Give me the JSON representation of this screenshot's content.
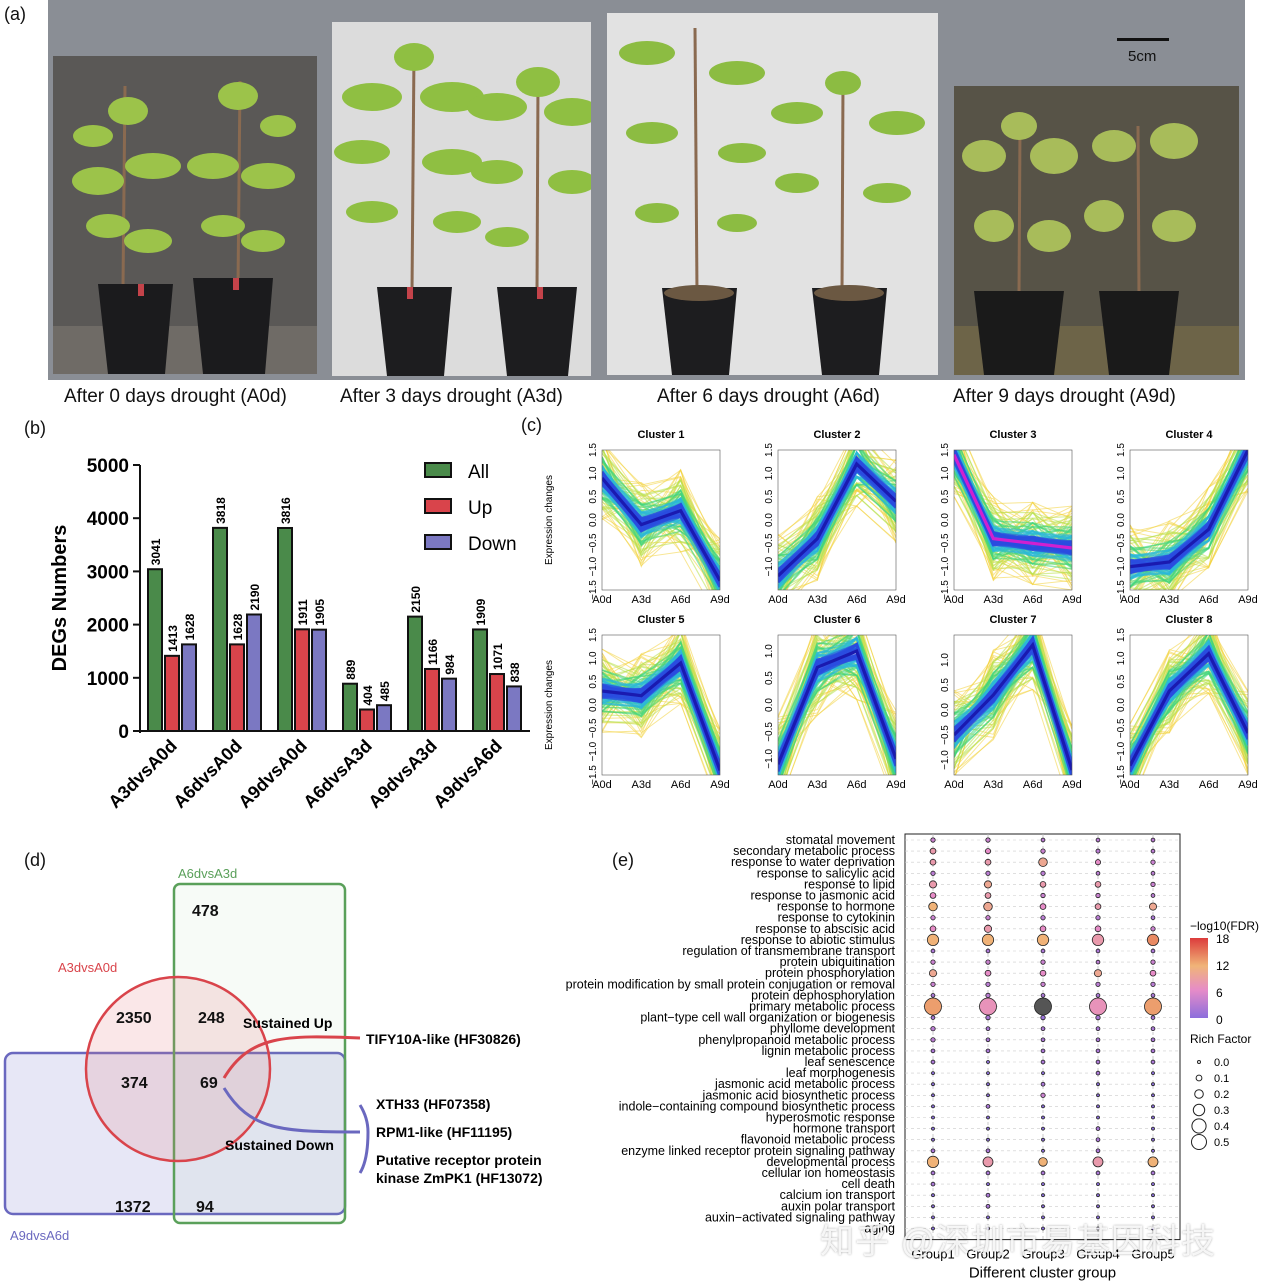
{
  "panels": {
    "a": "(a)",
    "b": "(b)",
    "c": "(c)",
    "d": "(d)",
    "e": "(e)"
  },
  "photos": {
    "scale_label": "5cm",
    "captions": [
      "After 0 days drought (A0d)",
      "After 3 days drought (A3d)",
      "After 6 days drought (A6d)",
      "After 9 days drought (A9d)"
    ]
  },
  "chart_data": [
    {
      "type": "bar",
      "ylabel": "DEGs Numbers",
      "ylim": [
        0,
        5000
      ],
      "yticks": [
        "0",
        "1000",
        "2000",
        "3000",
        "4000",
        "5000"
      ],
      "categories": [
        "A3dvsA0d",
        "A6dvsA0d",
        "A9dvsA0d",
        "A6dvsA3d",
        "A9dvsA3d",
        "A9dvsA6d"
      ],
      "series": [
        {
          "name": "All",
          "color": "#4a8a4a",
          "values": [
            3041,
            3818,
            3816,
            889,
            2150,
            1909
          ]
        },
        {
          "name": "Up",
          "color": "#d9444b",
          "values": [
            1413,
            1628,
            1911,
            404,
            1166,
            1071
          ]
        },
        {
          "name": "Down",
          "color": "#7b78c2",
          "values": [
            1628,
            2190,
            1905,
            485,
            984,
            838
          ]
        }
      ],
      "legend": "top-right"
    },
    {
      "type": "line",
      "ylabel": "Expression changes",
      "x": [
        "A0d",
        "A3d",
        "A6d",
        "A9d"
      ],
      "clusters": [
        {
          "title": "Cluster 1",
          "yticks": [
            "-1.5",
            "-1.0",
            "-0.5",
            "0.0",
            "0.5",
            "1.0",
            "1.5"
          ],
          "ylim": [
            -1.5,
            1.5
          ],
          "center": [
            0.9,
            -0.1,
            0.2,
            -1.3
          ]
        },
        {
          "title": "Cluster 2",
          "yticks": [
            "-1.0",
            "-0.5",
            "0.0",
            "0.5",
            "1.0",
            "1.5"
          ],
          "ylim": [
            -1.5,
            1.5
          ],
          "center": [
            -1.2,
            -0.4,
            1.2,
            0.4
          ]
        },
        {
          "title": "Cluster 3",
          "yticks": [
            "-1.5",
            "-1.0",
            "-0.5",
            "0.0",
            "0.5",
            "1.0",
            "1.5"
          ],
          "ylim": [
            -1.5,
            1.5
          ],
          "center": [
            1.4,
            -0.4,
            -0.5,
            -0.6
          ]
        },
        {
          "title": "Cluster 4",
          "yticks": [
            "-1.5",
            "-1.0",
            "-0.5",
            "0.0",
            "0.5",
            "1.0",
            "1.5"
          ],
          "ylim": [
            -1.5,
            1.5
          ],
          "center": [
            -1.0,
            -0.9,
            -0.2,
            1.5
          ]
        },
        {
          "title": "Cluster 5",
          "yticks": [
            "-1.5",
            "-1.0",
            "-0.5",
            "0.0",
            "0.5",
            "1.0",
            "1.5"
          ],
          "ylim": [
            -1.5,
            1.5
          ],
          "center": [
            0.3,
            0.2,
            0.9,
            -1.4
          ]
        },
        {
          "title": "Cluster 6",
          "yticks": [
            "-1.0",
            "-0.5",
            "0.0",
            "0.5",
            "1.0"
          ],
          "ylim": [
            -1.3,
            1.3
          ],
          "center": [
            -1.1,
            0.7,
            1.0,
            -1.0
          ]
        },
        {
          "title": "Cluster 7",
          "yticks": [
            "-1.0",
            "-0.5",
            "0.0",
            "0.5",
            "1.0"
          ],
          "ylim": [
            -1.3,
            1.5
          ],
          "center": [
            -0.5,
            0.3,
            1.3,
            -1.2
          ]
        },
        {
          "title": "Cluster 8",
          "yticks": [
            "-1.5",
            "-1.0",
            "-0.5",
            "0.0",
            "0.5",
            "1.0",
            "1.5"
          ],
          "ylim": [
            -1.5,
            1.5
          ],
          "center": [
            -1.3,
            0.3,
            1.1,
            -0.6
          ]
        }
      ]
    },
    {
      "type": "scatter",
      "xlabel": "Different cluster group",
      "groups": [
        "Group1",
        "Group2",
        "Group3",
        "Group4",
        "Group5"
      ],
      "terms": [
        "stomatal movement",
        "secondary metabolic process",
        "response to water deprivation",
        "response to salicylic acid",
        "response to lipid",
        "response to jasmonic acid",
        "response to hormone",
        "response to cytokinin",
        "response to abscisic acid",
        "response to abiotic stimulus",
        "regulation of transmembrane transport",
        "protein ubiquitination",
        "protein phosphorylation",
        "protein modification by small protein conjugation or removal",
        "protein dephosphorylation",
        "primary metabolic process",
        "plant−type cell wall organization or biogenesis",
        "phyllome development",
        "phenylpropanoid metabolic process",
        "lignin metabolic process",
        "leaf senescence",
        "leaf morphogenesis",
        "jasmonic acid metabolic process",
        "jasmonic acid biosynthetic process",
        "indole−containing compound biosynthetic process",
        "hyperosmotic response",
        "hormone transport",
        "flavonoid metabolic process",
        "enzyme linked receptor protein signaling pathway",
        "developmental process",
        "cellular ion homeostasis",
        "cell death",
        "calcium ion transport",
        "auxin polar transport",
        "auxin−activated signaling pathway",
        "aging"
      ],
      "rich_factor": [
        [
          0.05,
          0.05,
          0.03,
          0.03,
          0.03
        ],
        [
          0.1,
          0.08,
          0.05,
          0.04,
          0.03
        ],
        [
          0.1,
          0.1,
          0.2,
          0.08,
          0.05
        ],
        [
          0.05,
          0.05,
          0.05,
          0.03,
          0.03
        ],
        [
          0.15,
          0.15,
          0.1,
          0.1,
          0.05
        ],
        [
          0.1,
          0.1,
          0.05,
          0.05,
          0.03
        ],
        [
          0.2,
          0.2,
          0.1,
          0.1,
          0.15
        ],
        [
          0.05,
          0.05,
          0.05,
          0.05,
          0.03
        ],
        [
          0.1,
          0.15,
          0.1,
          0.1,
          0.05
        ],
        [
          0.3,
          0.3,
          0.3,
          0.3,
          0.3
        ],
        [
          0.03,
          0.03,
          0.03,
          0.03,
          0.03
        ],
        [
          0.05,
          0.05,
          0.05,
          0.03,
          0.05
        ],
        [
          0.15,
          0.1,
          0.1,
          0.15,
          0.1
        ],
        [
          0.05,
          0.05,
          0.05,
          0.05,
          0.05
        ],
        [
          0.03,
          0.05,
          0.03,
          0.03,
          0.03
        ],
        [
          0.5,
          0.5,
          0.5,
          0.5,
          0.5
        ],
        [
          0.03,
          0.05,
          0.05,
          0.05,
          0.03
        ],
        [
          0.05,
          0.03,
          0.03,
          0.03,
          0.03
        ],
        [
          0.05,
          0.03,
          0.03,
          0.03,
          0.03
        ],
        [
          0.03,
          0.03,
          0.03,
          0.03,
          0.03
        ],
        [
          0.03,
          0.0,
          0.03,
          0.03,
          0.03
        ],
        [
          0.0,
          0.0,
          0.0,
          0.03,
          0.0
        ],
        [
          0.0,
          0.0,
          0.03,
          0.0,
          0.0
        ],
        [
          0.0,
          0.0,
          0.05,
          0.0,
          0.0
        ],
        [
          0.0,
          0.03,
          0.0,
          0.0,
          0.0
        ],
        [
          0.0,
          0.0,
          0.0,
          0.0,
          0.0
        ],
        [
          0.0,
          0.0,
          0.0,
          0.03,
          0.0
        ],
        [
          0.0,
          0.0,
          0.0,
          0.03,
          0.0
        ],
        [
          0.03,
          0.03,
          0.0,
          0.03,
          0.0
        ],
        [
          0.3,
          0.25,
          0.2,
          0.25,
          0.25
        ],
        [
          0.03,
          0.03,
          0.03,
          0.03,
          0.03
        ],
        [
          0.03,
          0.0,
          0.0,
          0.0,
          0.0
        ],
        [
          0.0,
          0.03,
          0.0,
          0.0,
          0.0
        ],
        [
          0.0,
          0.03,
          0.0,
          0.0,
          0.0
        ],
        [
          0.0,
          0.0,
          0.0,
          0.0,
          0.0
        ],
        [
          0.0,
          0.0,
          0.0,
          0.0,
          0.0
        ]
      ],
      "neg_log10_fdr": [
        [
          4,
          4,
          3,
          3,
          3
        ],
        [
          8,
          6,
          4,
          3,
          3
        ],
        [
          8,
          8,
          10,
          6,
          4
        ],
        [
          3,
          3,
          3,
          3,
          3
        ],
        [
          8,
          10,
          8,
          8,
          4
        ],
        [
          6,
          8,
          4,
          4,
          3
        ],
        [
          12,
          10,
          6,
          8,
          10
        ],
        [
          4,
          4,
          3,
          3,
          2
        ],
        [
          6,
          8,
          6,
          6,
          4
        ],
        [
          12,
          12,
          12,
          8,
          14
        ],
        [
          2,
          2,
          2,
          2,
          2
        ],
        [
          4,
          4,
          4,
          3,
          4
        ],
        [
          10,
          6,
          6,
          10,
          6
        ],
        [
          4,
          3,
          4,
          3,
          3
        ],
        [
          2,
          3,
          2,
          2,
          2
        ],
        [
          13,
          7,
          20,
          7,
          13
        ],
        [
          2,
          2,
          1,
          2,
          2
        ],
        [
          3,
          2,
          2,
          2,
          2
        ],
        [
          3,
          2,
          2,
          2,
          2
        ],
        [
          2,
          2,
          2,
          2,
          2
        ],
        [
          2,
          0,
          2,
          2,
          2
        ],
        [
          0,
          0,
          0,
          2,
          0
        ],
        [
          0,
          0,
          2,
          0,
          0
        ],
        [
          0,
          0,
          4,
          0,
          0
        ],
        [
          0,
          2,
          0,
          0,
          0
        ],
        [
          0,
          0,
          0,
          0,
          0
        ],
        [
          0,
          0,
          0,
          2,
          0
        ],
        [
          0,
          0,
          0,
          2,
          0
        ],
        [
          2,
          2,
          0,
          2,
          0
        ],
        [
          12,
          8,
          12,
          8,
          12
        ],
        [
          2,
          2,
          2,
          2,
          2
        ],
        [
          2,
          0,
          0,
          0,
          0
        ],
        [
          0,
          2,
          0,
          0,
          0
        ],
        [
          0,
          2,
          0,
          0,
          0
        ],
        [
          0,
          0,
          0,
          0,
          0
        ],
        [
          0,
          0,
          0,
          0,
          0
        ]
      ],
      "color_legend": {
        "title": "−log10(FDR)",
        "ticks": [
          "18",
          "12",
          "6",
          "0"
        ],
        "range": [
          0,
          18
        ]
      },
      "size_legend": {
        "title": "Rich Factor",
        "ticks": [
          "0.0",
          "0.1",
          "0.2",
          "0.3",
          "0.4",
          "0.5"
        ]
      }
    }
  ],
  "venn": {
    "set_labels": [
      "A6dvsA3d",
      "A3dvsA0d",
      "A9dvsA6d"
    ],
    "set_colors": [
      "#5aa05a",
      "#d9444b",
      "#6a68bf"
    ],
    "counts": {
      "a6_only": "478",
      "a3_only": "2350",
      "a3_a6": "248",
      "a3_a9": "374",
      "all": "69",
      "a9_only": "1372",
      "a6_a9": "94"
    },
    "sustained_up": "Sustained Up",
    "sustained_down": "Sustained Down",
    "up_genes": [
      "TIFY10A-like (HF30826)"
    ],
    "down_genes": [
      "XTH33 (HF07358)",
      "RPM1-like (HF11195)",
      "Putative receptor protein",
      "kinase ZmPK1 (HF13072)"
    ]
  },
  "watermark": "知乎 @深圳市易基因科技"
}
